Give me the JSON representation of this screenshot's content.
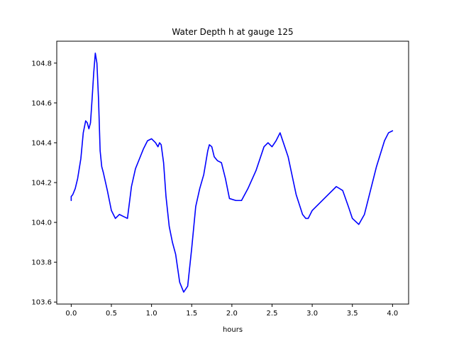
{
  "chart_data": {
    "type": "line",
    "title": "Water Depth h at gauge 125",
    "xlabel": "hours",
    "ylabel": "",
    "xlim": [
      -0.18,
      4.2
    ],
    "ylim": [
      103.59,
      104.91
    ],
    "xticks": [
      0.0,
      0.5,
      1.0,
      1.5,
      2.0,
      2.5,
      3.0,
      3.5,
      4.0
    ],
    "xtick_labels": [
      "0.0",
      "0.5",
      "1.0",
      "1.5",
      "2.0",
      "2.5",
      "3.0",
      "3.5",
      "4.0"
    ],
    "yticks": [
      103.6,
      103.8,
      104.0,
      104.2,
      104.4,
      104.6,
      104.8
    ],
    "ytick_labels": [
      "103.6",
      "103.8",
      "104.0",
      "104.2",
      "104.4",
      "104.6",
      "104.8"
    ],
    "grid": false,
    "series": [
      {
        "color": "#0000ff",
        "x": [
          0.0,
          0.0,
          0.02,
          0.05,
          0.08,
          0.12,
          0.15,
          0.18,
          0.2,
          0.22,
          0.24,
          0.26,
          0.28,
          0.3,
          0.32,
          0.34,
          0.36,
          0.38,
          0.4,
          0.45,
          0.5,
          0.55,
          0.6,
          0.65,
          0.7,
          0.75,
          0.8,
          0.85,
          0.9,
          0.95,
          1.0,
          1.05,
          1.08,
          1.1,
          1.12,
          1.15,
          1.18,
          1.22,
          1.26,
          1.3,
          1.35,
          1.4,
          1.45,
          1.5,
          1.55,
          1.6,
          1.65,
          1.7,
          1.72,
          1.75,
          1.78,
          1.82,
          1.87,
          1.92,
          1.97,
          2.05,
          2.12,
          2.2,
          2.3,
          2.4,
          2.45,
          2.5,
          2.55,
          2.6,
          2.7,
          2.8,
          2.88,
          2.92,
          2.95,
          3.0,
          3.1,
          3.2,
          3.3,
          3.38,
          3.45,
          3.5,
          3.58,
          3.65,
          3.7,
          3.8,
          3.9,
          3.95,
          4.0
        ],
        "y": [
          104.11,
          104.13,
          104.14,
          104.17,
          104.22,
          104.32,
          104.45,
          104.51,
          104.5,
          104.47,
          104.5,
          104.62,
          104.75,
          104.85,
          104.8,
          104.62,
          104.36,
          104.28,
          104.25,
          104.16,
          104.06,
          104.02,
          104.04,
          104.03,
          104.02,
          104.18,
          104.27,
          104.32,
          104.37,
          104.41,
          104.42,
          104.4,
          104.38,
          104.4,
          104.39,
          104.3,
          104.13,
          103.98,
          103.9,
          103.84,
          103.7,
          103.65,
          103.68,
          103.87,
          104.08,
          104.17,
          104.24,
          104.36,
          104.39,
          104.38,
          104.33,
          104.31,
          104.3,
          104.22,
          104.12,
          104.11,
          104.11,
          104.17,
          104.26,
          104.38,
          104.4,
          104.38,
          104.41,
          104.45,
          104.33,
          104.14,
          104.04,
          104.02,
          104.02,
          104.06,
          104.1,
          104.14,
          104.18,
          104.16,
          104.08,
          104.02,
          103.99,
          104.04,
          104.12,
          104.28,
          104.41,
          104.45,
          104.46
        ]
      }
    ]
  }
}
